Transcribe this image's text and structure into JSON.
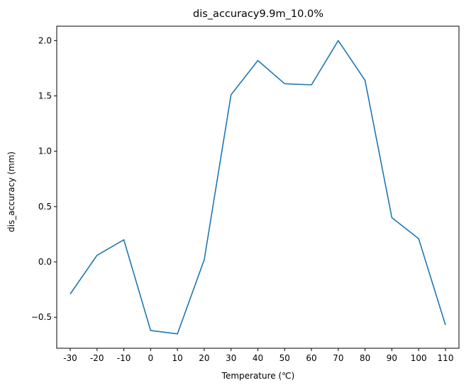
{
  "chart_data": {
    "type": "line",
    "title": "dis_accuracy9.9m_10.0%",
    "xlabel": "Temperature (℃)",
    "ylabel": "dis_accuracy (mm)",
    "categories": [
      "-30",
      "-20",
      "-10",
      "0",
      "10",
      "20",
      "30",
      "40",
      "50",
      "60",
      "70",
      "80",
      "90",
      "100",
      "110"
    ],
    "series": [
      {
        "values": [
          -0.29,
          0.06,
          0.2,
          -0.62,
          -0.65,
          0.02,
          1.51,
          1.82,
          1.61,
          1.6,
          2.0,
          1.64,
          0.4,
          0.21,
          -0.57
        ]
      }
    ],
    "yticks": [
      -0.5,
      0.0,
      0.5,
      1.0,
      1.5,
      2.0
    ],
    "ytick_labels": [
      "−0.5",
      "0.0",
      "0.5",
      "1.0",
      "1.5",
      "2.0"
    ],
    "ylim": [
      -0.78,
      2.13
    ],
    "grid": false,
    "legend": "none",
    "colors": {
      "line": "#1f77b4",
      "axes": "#000000",
      "background": "#ffffff"
    }
  }
}
